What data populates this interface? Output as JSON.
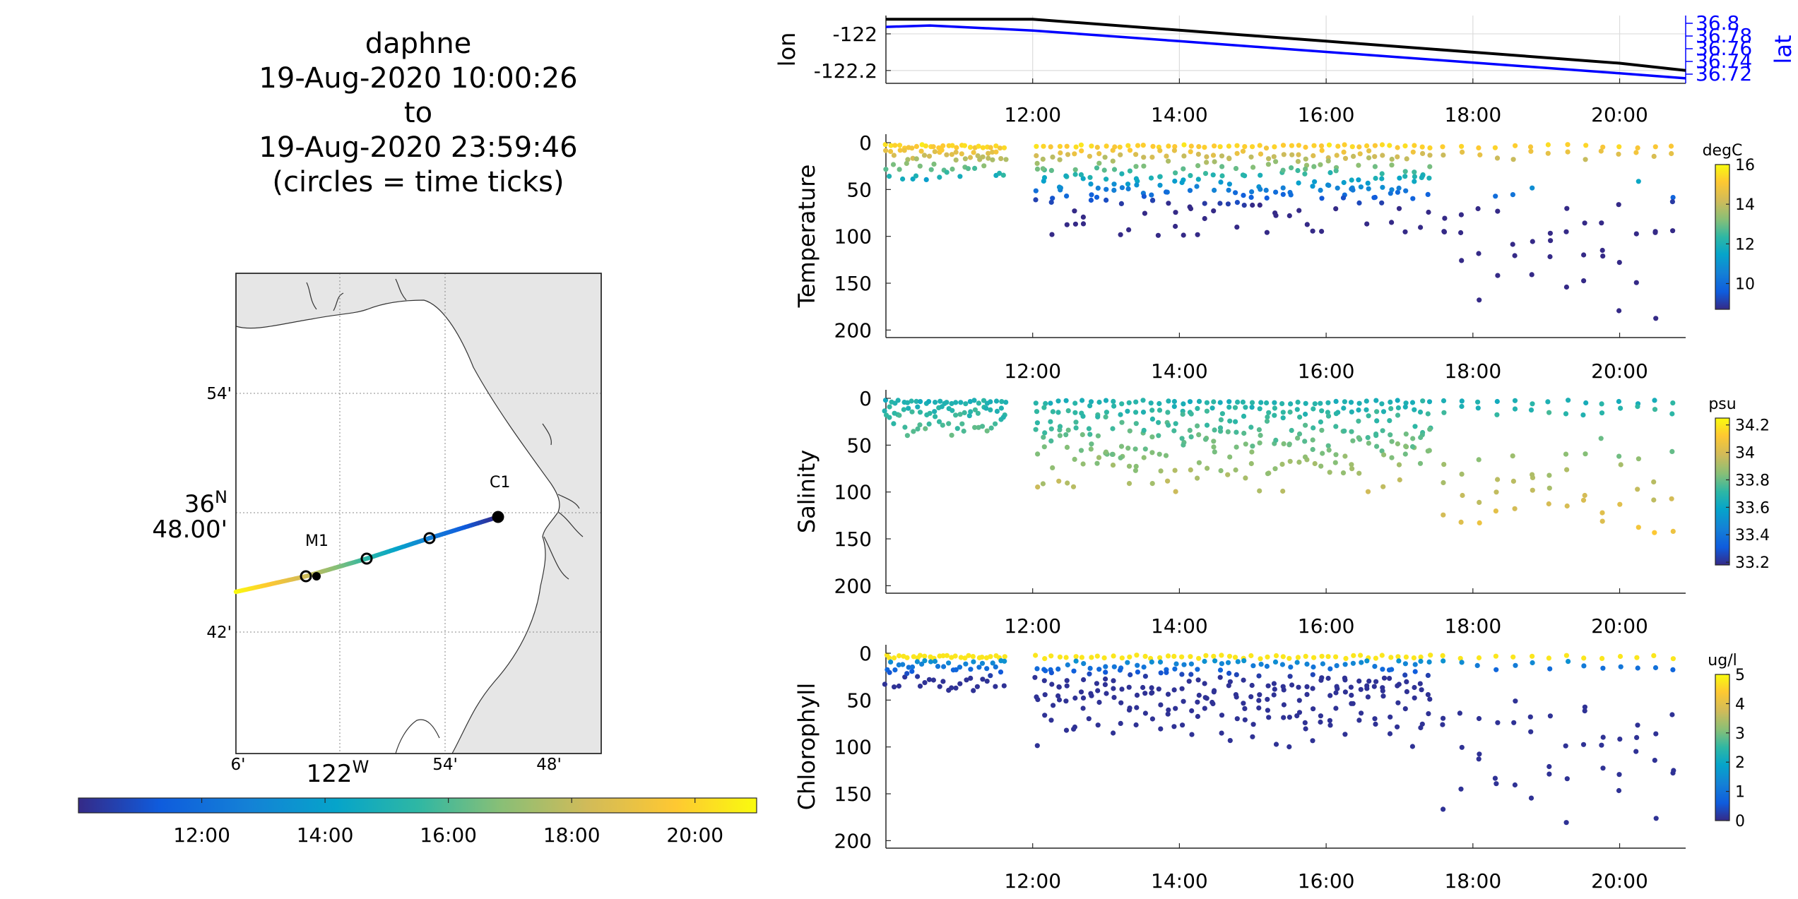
{
  "header": {
    "lines": [
      "daphne",
      "19-Aug-2020 10:00:26",
      "to",
      "19-Aug-2020 23:59:46",
      "(circles = time ticks)"
    ]
  },
  "map": {
    "lat_ticks": [
      "54'",
      "42'"
    ],
    "lat_main": [
      "36",
      "N",
      "48.00'"
    ],
    "lon_ticks": [
      "6'",
      "54'",
      "48'"
    ],
    "lon_main": [
      "122",
      "W"
    ],
    "markers": [
      "C1",
      "M1"
    ],
    "land_color": "#e6e6e6",
    "water_color": "#ffffff"
  },
  "time_colorbar": {
    "ticks": [
      "12:00",
      "14:00",
      "16:00",
      "18:00",
      "20:00"
    ],
    "tick_values": [
      12,
      14,
      16,
      18,
      20
    ],
    "range": [
      10.0,
      21.0
    ]
  },
  "time_axis": {
    "ticks": [
      "12:00",
      "14:00",
      "16:00",
      "18:00",
      "20:00"
    ],
    "tick_values": [
      12,
      14,
      16,
      18,
      20
    ],
    "range": [
      10.0,
      20.9
    ]
  },
  "chart_data": [
    {
      "type": "line",
      "panel": "position",
      "ylabel": "lon",
      "ylabel_right": "lat",
      "yticks_left": [
        "-122",
        "-122.2"
      ],
      "yticks_right": [
        "36.8",
        "36.78",
        "36.76",
        "36.74",
        "36.72"
      ],
      "xlim": [
        10.0,
        20.9
      ],
      "ylim_left": [
        -122.27,
        -121.9
      ],
      "series": [
        {
          "name": "lon",
          "color": "#000000",
          "x": [
            10.0,
            12.0,
            14.0,
            16.0,
            18.0,
            20.0,
            20.9
          ],
          "values": [
            -121.92,
            -121.92,
            -121.98,
            -122.04,
            -122.1,
            -122.16,
            -122.2
          ]
        },
        {
          "name": "lat",
          "color": "#0000ff",
          "x": [
            10.0,
            10.6,
            12.0,
            14.0,
            16.0,
            18.0,
            20.0,
            20.9
          ],
          "values": [
            36.8,
            36.802,
            36.795,
            36.78,
            36.765,
            36.75,
            36.735,
            36.728
          ]
        }
      ]
    },
    {
      "type": "scatter",
      "panel": "temperature",
      "ylabel": "Temperature",
      "yticks": [
        "0",
        "50",
        "100",
        "150",
        "200"
      ],
      "ylim": [
        205,
        0
      ],
      "colorbar": {
        "label": "degC",
        "ticks": [
          "16",
          "14",
          "12",
          "10"
        ],
        "range": [
          8.7,
          16
        ]
      }
    },
    {
      "type": "scatter",
      "panel": "salinity",
      "ylabel": "Salinity",
      "yticks": [
        "0",
        "50",
        "100",
        "150",
        "200"
      ],
      "ylim": [
        205,
        0
      ],
      "colorbar": {
        "label": "psu",
        "ticks": [
          "34.2",
          "34",
          "33.8",
          "33.6",
          "33.4",
          "33.2"
        ],
        "range": [
          33.18,
          34.25
        ]
      }
    },
    {
      "type": "scatter",
      "panel": "chlorophyll",
      "ylabel": "Chlorophyll",
      "yticks": [
        "0",
        "50",
        "100",
        "150",
        "200"
      ],
      "ylim": [
        205,
        0
      ],
      "colorbar": {
        "label": "ug/l",
        "ticks": [
          "5",
          "4",
          "3",
          "2",
          "1",
          "0"
        ],
        "range": [
          0,
          5
        ]
      }
    }
  ]
}
